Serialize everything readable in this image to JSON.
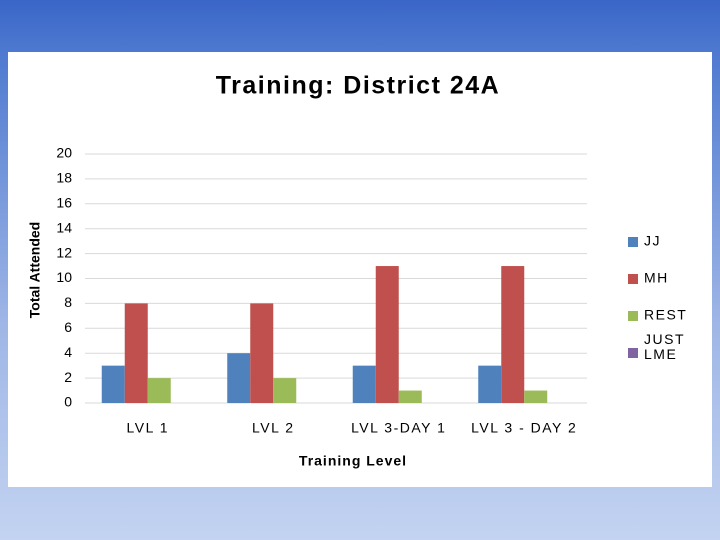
{
  "chart_data": {
    "type": "bar",
    "title": "Training: District 24A",
    "x_label": "Training Level",
    "y_label": "Total Attended",
    "categories": [
      "LVL 1",
      "LVL 2",
      "LVL 3-DAY 1",
      "LVL 3 - DAY 2"
    ],
    "series": [
      {
        "name": "JJ",
        "color": "#4f81bd",
        "values": [
          3,
          4,
          3,
          3
        ]
      },
      {
        "name": "MH",
        "color": "#c0504d",
        "values": [
          8,
          8,
          11,
          11
        ]
      },
      {
        "name": "REST",
        "color": "#9bbb59",
        "values": [
          2,
          2,
          1,
          1
        ]
      },
      {
        "name": "JUST LME",
        "color": "#8064a2",
        "values": [
          0,
          0,
          0,
          0
        ]
      }
    ],
    "ylim": [
      0,
      20
    ],
    "yticks": [
      0,
      2,
      4,
      6,
      8,
      10,
      12,
      14,
      16,
      18,
      20
    ],
    "grid": true,
    "legend": "right"
  }
}
